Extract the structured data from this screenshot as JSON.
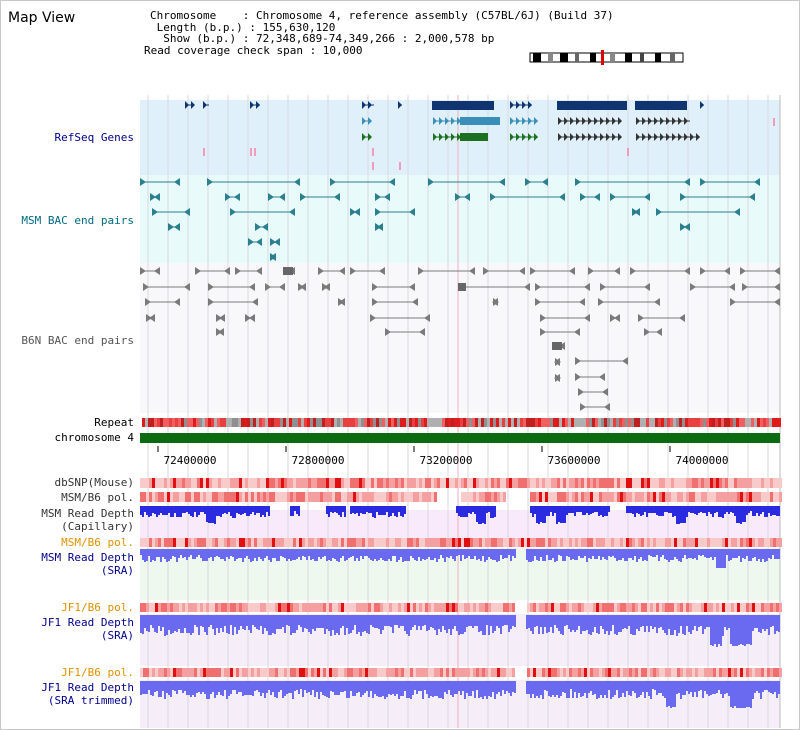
{
  "window": {
    "title": "Map View"
  },
  "info": {
    "chromosome_line": "Chromosome    : Chromosome 4, reference assembly (C57BL/6J) (Build 37)",
    "length_line": " Length (b.p.) : 155,630,120",
    "show_line": "  Show (b.p.) : 72,348,689-74,349,266 : 2,000,578 bp",
    "coverage_line": "Read coverage check span : 10,000"
  },
  "tracks": {
    "refseq": "RefSeq Genes",
    "msm_bac": "MSM BAC end pairs",
    "b6n_bac": "B6N BAC end pairs",
    "repeat": "Repeat",
    "chromosome": "chromosome 4",
    "dbsnp": "dbSNP(Mouse)",
    "msm_b6_pol_1": "MSM/B6 pol.",
    "msm_read_depth_cap_1": "MSM Read Depth",
    "msm_read_depth_cap_2": "(Capillary)",
    "msm_b6_pol_2": "MSM/B6 pol.",
    "msm_read_depth_sra_1": "MSM Read Depth",
    "msm_read_depth_sra_2": "(SRA)",
    "jf1_b6_pol_1": "JF1/B6 pol.",
    "jf1_read_depth_sra_1": "JF1 Read Depth",
    "jf1_read_depth_sra_2": "(SRA)",
    "jf1_b6_pol_2": "JF1/B6 pol.",
    "jf1_read_depth_trim_1": "JF1 Read Depth",
    "jf1_read_depth_trim_2": "(SRA trimmed)"
  },
  "axis": {
    "ticks": [
      "72400000",
      "72800000",
      "73200000",
      "73600000",
      "74000000"
    ]
  },
  "colors": {
    "refseq_bg": "#dff0fa",
    "msm_bac_bg": "#e8fafa",
    "b6n_bac_bg": "#f8f8fa",
    "gene_dark": "#0f3470",
    "gene_light": "#3a8fb8",
    "gene_green": "#1d7020",
    "msm_bac": "#2b7f8f",
    "b6n_bac": "#7a7a7a",
    "repeat_red": "#e01b1b",
    "chromosome": "#0c6a10",
    "depth_blue": "#2a2ae0",
    "depth_lavender": "#6a6af0",
    "label_blue": "#00008b",
    "label_teal": "#006a80",
    "label_orange": "#e09000"
  }
}
